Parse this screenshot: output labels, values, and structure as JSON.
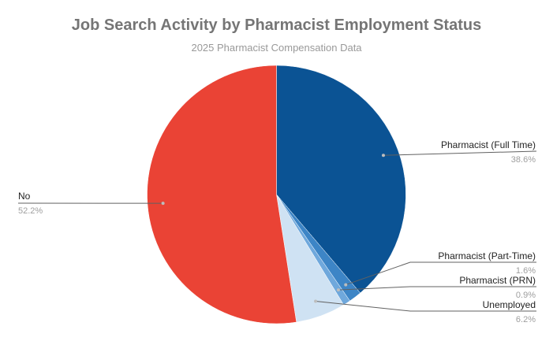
{
  "chart_data": {
    "type": "pie",
    "title": "Job Search Activity by Pharmacist Employment Status",
    "subtitle": "2025 Pharmacist Compensation Data",
    "slices": [
      {
        "label": "Pharmacist (Full Time)",
        "value": 38.6,
        "value_label": "38.6%",
        "color": "#0b5394"
      },
      {
        "label": "Pharmacist (Part-Time)",
        "value": 1.6,
        "value_label": "1.6%",
        "color": "#3d85c6"
      },
      {
        "label": "Pharmacist (PRN)",
        "value": 0.9,
        "value_label": "0.9%",
        "color": "#6fa8dc"
      },
      {
        "label": "Unemployed",
        "value": 6.2,
        "value_label": "6.2%",
        "color": "#cfe2f3"
      },
      {
        "label": "No",
        "value": 52.2,
        "value_label": "52.2%",
        "color": "#ea4335"
      }
    ],
    "legend": "none",
    "label_style": "outside-callouts"
  }
}
